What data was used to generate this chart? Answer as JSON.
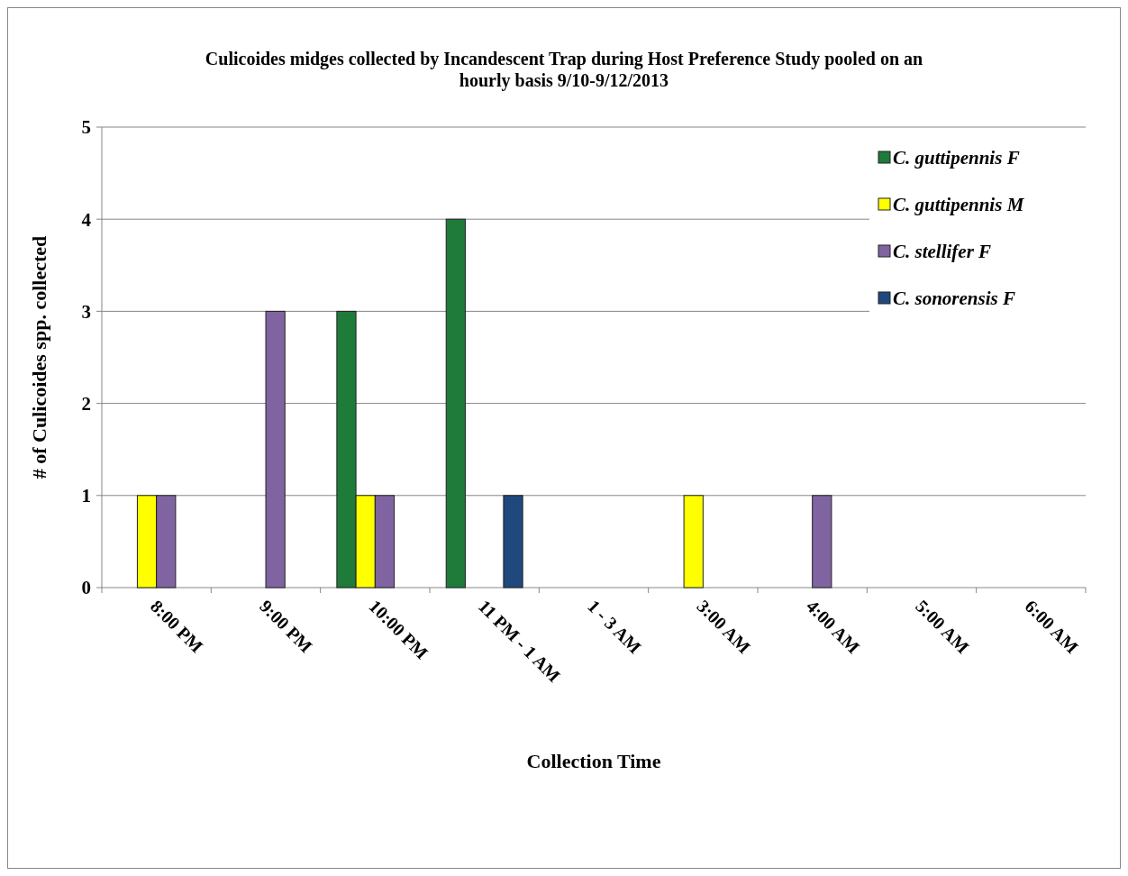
{
  "chart_data": {
    "type": "bar",
    "title": "Culicoides midges collected by Incandescent Trap during Host Preference Study pooled on an hourly basis 9/10-9/12/2013",
    "xlabel": "Collection Time",
    "ylabel": "# of Culicoides spp. collected",
    "categories": [
      "8:00 PM",
      "9:00 PM",
      "10:00 PM",
      "11 PM - 1 AM",
      "1 - 3 AM",
      "3:00 AM",
      "4:00 AM",
      "5:00 AM",
      "6:00 AM"
    ],
    "series": [
      {
        "name": "C. guttipennis F",
        "color": "#1e7b3a",
        "values": [
          0,
          0,
          3,
          4,
          0,
          0,
          0,
          0,
          0
        ]
      },
      {
        "name": "C. guttipennis M",
        "color": "#ffff00",
        "values": [
          1,
          0,
          1,
          0,
          0,
          1,
          0,
          0,
          0
        ]
      },
      {
        "name": "C. stellifer F",
        "color": "#8064a2",
        "values": [
          1,
          3,
          1,
          0,
          0,
          0,
          1,
          0,
          0
        ]
      },
      {
        "name": "C. sonorensis F",
        "color": "#1f497d",
        "values": [
          0,
          0,
          0,
          1,
          0,
          0,
          0,
          0,
          0
        ]
      }
    ],
    "ylim": [
      0,
      5
    ],
    "yticks": [
      0,
      1,
      2,
      3,
      4,
      5
    ],
    "grid": "y",
    "legend": "top right"
  }
}
